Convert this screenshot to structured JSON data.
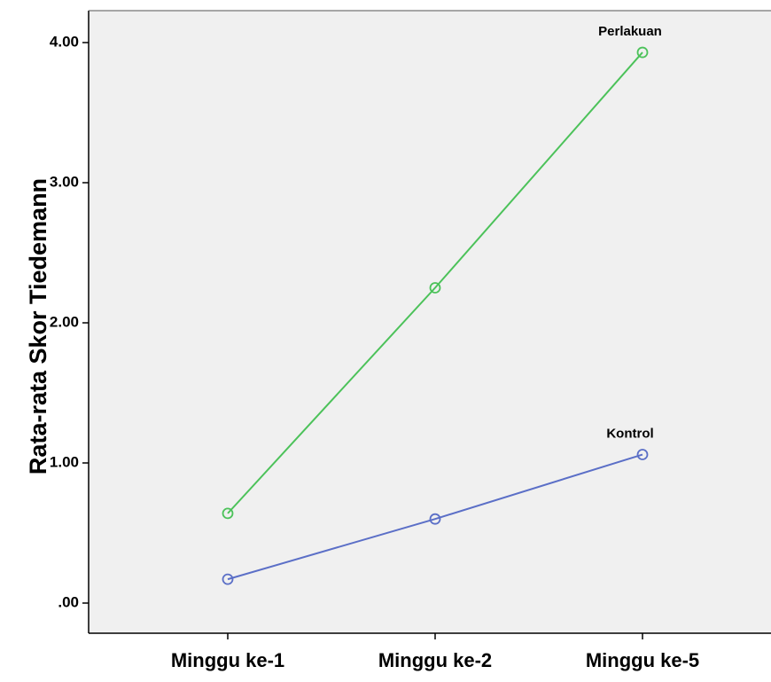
{
  "chart_data": {
    "type": "line",
    "title": "",
    "xlabel": "",
    "ylabel": "Rata-rata Skor Tiedemann",
    "categories": [
      "Minggu ke-1",
      "Minggu ke-2",
      "Minggu ke-5"
    ],
    "ylim": [
      -0.2,
      4.25
    ],
    "yticks": [
      0,
      1,
      2,
      3,
      4
    ],
    "ytick_labels": [
      ".00",
      "1.00",
      "2.00",
      "3.00",
      "4.00"
    ],
    "grid": false,
    "legend": "none (series labelled at line ends)",
    "series": [
      {
        "name": "Perlakuan",
        "values": [
          0.64,
          2.25,
          3.93
        ],
        "color": "#4cc25a"
      },
      {
        "name": "Kontrol",
        "values": [
          0.17,
          0.6,
          1.06
        ],
        "color": "#5b6fc7"
      }
    ],
    "plot_background": "#f0f0f0"
  }
}
